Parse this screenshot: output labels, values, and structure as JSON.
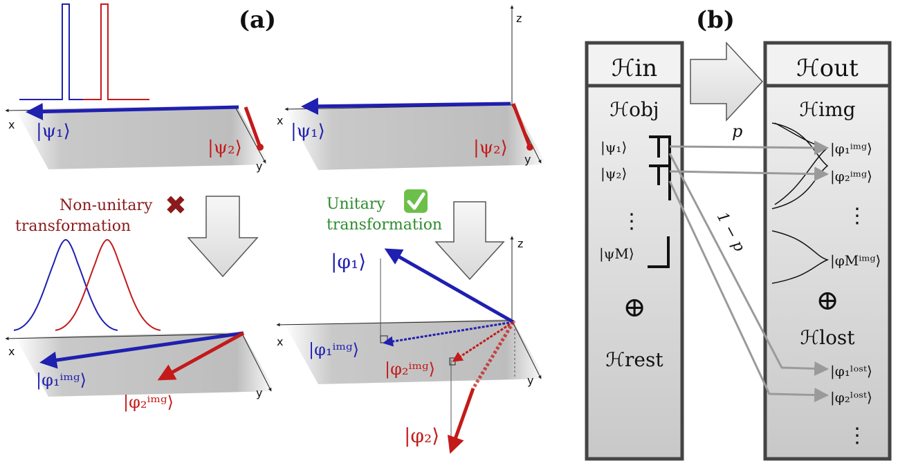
{
  "panel_a": {
    "label": "(a)",
    "axes": {
      "x": "x",
      "y": "y",
      "z": "z"
    },
    "top_left": {
      "psi1": "|ψ₁⟩",
      "psi2": "|ψ₂⟩"
    },
    "top_right": {
      "psi1": "|ψ₁⟩",
      "psi2": "|ψ₂⟩"
    },
    "nonunitary": {
      "line1": "Non-unitary",
      "line2": "transformation",
      "mark": "✖"
    },
    "unitary": {
      "line1": "Unitary",
      "line2": "transformation",
      "mark": "✔"
    },
    "bottom_left": {
      "phi1img": "|φ₁ⁱᵐᵍ⟩",
      "phi2img": "|φ₂ⁱᵐᵍ⟩"
    },
    "bottom_right": {
      "phi1": "|φ₁⟩",
      "phi1img": "|φ₁ⁱᵐᵍ⟩",
      "phi2img": "|φ₂ⁱᵐᵍ⟩",
      "phi2": "|φ₂⟩"
    },
    "colors": {
      "blue": "#1f1fb0",
      "red": "#c41a1a",
      "green": "#2e8b2e",
      "dark_red": "#8b1a1a"
    }
  },
  "panel_b": {
    "label": "(b)",
    "h_in": "ℋin",
    "h_out": "ℋout",
    "h_obj": "ℋobj",
    "h_img": "ℋimg",
    "h_rest": "ℋrest",
    "h_lost": "ℋlost",
    "oplus": "⊕",
    "p_label": "p",
    "one_minus_p": "1 − p",
    "inputs": [
      "|ψ₁⟩",
      "|ψ₂⟩",
      "⋮",
      "|ψM⟩"
    ],
    "outputs_img": [
      "|φ₁ⁱᵐᵍ⟩",
      "|φ₂ⁱᵐᵍ⟩",
      "⋮",
      "|φMⁱᵐᵍ⟩"
    ],
    "outputs_lost": [
      "|φ₁ˡᵒˢᵗ⟩",
      "|φ₂ˡᵒˢᵗ⟩",
      "⋮"
    ]
  }
}
